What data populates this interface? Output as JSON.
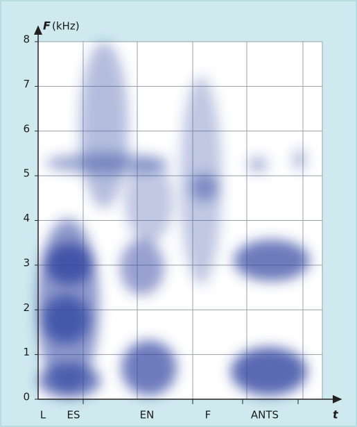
{
  "chart_data": {
    "type": "spectrogram",
    "y_label": "F",
    "y_unit": "(kHz)",
    "x_label": "t",
    "ylim": [
      0,
      8
    ],
    "yticks": [
      0,
      1,
      2,
      3,
      4,
      5,
      6,
      7,
      8
    ],
    "grid": true,
    "segments": [
      "L",
      "ES",
      "EN",
      "F",
      "ANTS"
    ],
    "color": "#2f44a0"
  }
}
